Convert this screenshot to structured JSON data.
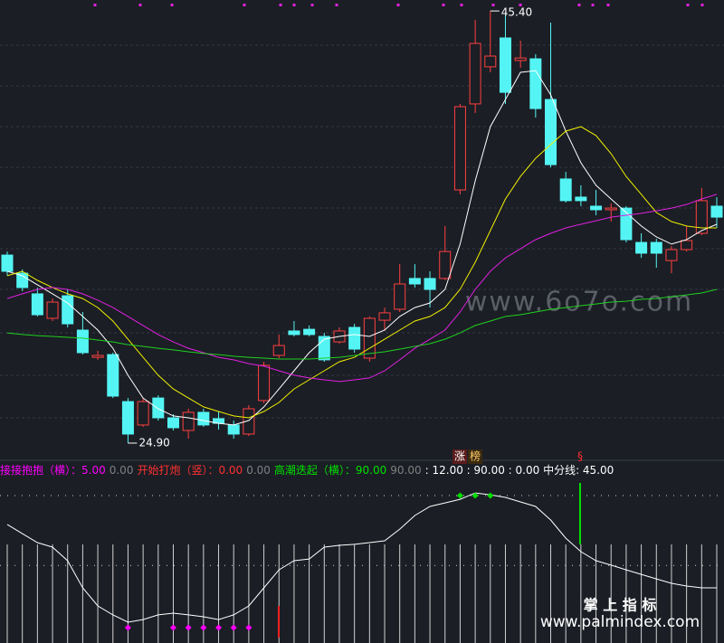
{
  "chart_data": {
    "type": "candlestick",
    "ylim": [
      24.47,
      45.92
    ],
    "up_color": "#ff4040",
    "down_color": "#54f4f4",
    "open": [
      33.82,
      32.96,
      31.98,
      30.82,
      31.89,
      30.26,
      28.97,
      29.1,
      26.87,
      25.76,
      27.04,
      26.1,
      25.5,
      26.36,
      26.06,
      25.76,
      25.33,
      26.92,
      29.06,
      30.22,
      30.3,
      29.96,
      29.7,
      30.39,
      28.93,
      30.73,
      31.25,
      32.71,
      32.71,
      32.71,
      36.91,
      40.99,
      42.75,
      44.12,
      43.05,
      43.13,
      41.2,
      37.43,
      36.57,
      36.14,
      35.97,
      36.05,
      34.42,
      34.42,
      33.56,
      34.08,
      34.85,
      36.14
    ],
    "high": [
      33.99,
      33.14,
      32.28,
      31.76,
      32.19,
      31.12,
      29.28,
      29.19,
      27.04,
      27.04,
      27.17,
      26.27,
      26.53,
      26.53,
      26.4,
      25.97,
      26.7,
      28.76,
      30.05,
      30.69,
      30.48,
      30.13,
      30.39,
      30.56,
      30.91,
      31.33,
      33.39,
      33.39,
      33.05,
      35.2,
      40.99,
      44.98,
      45.4,
      45.2,
      43.99,
      43.35,
      44.85,
      37.77,
      37.13,
      36.91,
      36.27,
      36.14,
      34.85,
      34.59,
      34.25,
      35.2,
      37.0,
      36.57
    ],
    "low": [
      32.84,
      32.11,
      30.91,
      30.69,
      30.39,
      29.1,
      28.85,
      27.04,
      24.9,
      25.67,
      25.97,
      25.5,
      25.11,
      25.67,
      25.54,
      25.11,
      25.24,
      26.79,
      28.93,
      29.96,
      29.96,
      28.76,
      29.62,
      29.19,
      28.76,
      30.22,
      31.12,
      32.28,
      31.33,
      32.62,
      36.7,
      40.56,
      42.49,
      40.99,
      42.7,
      40.34,
      37.98,
      36.31,
      36.14,
      35.71,
      35.41,
      34.42,
      33.69,
      33.22,
      32.96,
      33.99,
      34.77,
      35.11
    ],
    "close": [
      33.05,
      32.28,
      30.99,
      31.59,
      30.56,
      29.19,
      29.06,
      27.13,
      25.33,
      26.87,
      26.1,
      25.63,
      26.36,
      25.76,
      25.84,
      25.33,
      26.53,
      28.59,
      29.53,
      30.05,
      30.05,
      28.85,
      30.22,
      29.36,
      30.82,
      31.08,
      32.45,
      32.45,
      32.19,
      33.99,
      40.86,
      43.86,
      43.26,
      41.54,
      43.17,
      40.77,
      38.11,
      36.4,
      36.4,
      35.97,
      36.05,
      34.55,
      33.91,
      33.91,
      34.08,
      34.51,
      36.4,
      35.62
    ],
    "moving_averages": [
      {
        "color": "#ffffff",
        "values": [
          33.05,
          32.84,
          32.41,
          31.98,
          31.55,
          30.91,
          30.26,
          29.4,
          28.12,
          27.04,
          26.53,
          26.19,
          26.1,
          25.97,
          25.84,
          25.76,
          25.97,
          26.62,
          27.47,
          28.33,
          29.19,
          29.83,
          29.96,
          30.05,
          29.96,
          30.26,
          30.91,
          31.33,
          31.55,
          32.19,
          34.34,
          37.34,
          39.91,
          41.2,
          42.49,
          42.57,
          41.42,
          39.7,
          38.2,
          37.13,
          36.48,
          35.84,
          35.2,
          34.68,
          34.34,
          34.55,
          34.98,
          35.28
        ]
      },
      {
        "color": "#f0f000",
        "values": [
          32.84,
          33.05,
          32.62,
          32.28,
          31.98,
          31.76,
          31.33,
          30.69,
          29.83,
          28.97,
          28.12,
          27.47,
          27.04,
          26.62,
          26.4,
          26.19,
          26.1,
          26.4,
          26.83,
          27.47,
          27.9,
          28.33,
          28.76,
          28.97,
          29.4,
          29.83,
          30.26,
          30.69,
          30.91,
          31.33,
          32.19,
          33.48,
          34.98,
          36.48,
          37.55,
          38.41,
          39.06,
          39.7,
          39.91,
          39.49,
          38.63,
          37.55,
          36.7,
          35.84,
          35.41,
          35.2,
          35.11,
          35.11
        ]
      },
      {
        "color": "#e020e0",
        "values": [
          31.76,
          31.98,
          32.19,
          32.28,
          32.19,
          31.98,
          31.68,
          31.33,
          30.91,
          30.48,
          30.05,
          29.7,
          29.4,
          29.19,
          28.97,
          28.85,
          28.67,
          28.55,
          28.33,
          28.12,
          27.99,
          27.9,
          27.82,
          27.9,
          27.99,
          28.33,
          28.85,
          29.4,
          29.83,
          30.26,
          31.12,
          32.19,
          33.05,
          33.69,
          34.12,
          34.55,
          34.85,
          35.11,
          35.28,
          35.45,
          35.62,
          35.71,
          35.8,
          35.92,
          36.05,
          36.22,
          36.48,
          36.7
        ]
      },
      {
        "color": "#20d020",
        "values": [
          30.13,
          30.05,
          30.0,
          29.96,
          29.92,
          29.88,
          29.79,
          29.7,
          29.57,
          29.49,
          29.4,
          29.32,
          29.23,
          29.15,
          29.1,
          29.02,
          28.97,
          28.93,
          28.89,
          28.89,
          28.89,
          28.93,
          28.97,
          29.06,
          29.15,
          29.23,
          29.36,
          29.49,
          29.62,
          29.83,
          30.13,
          30.48,
          30.69,
          30.91,
          30.99,
          31.12,
          31.25,
          31.33,
          31.42,
          31.5,
          31.59,
          31.63,
          31.72,
          31.76,
          31.85,
          31.93,
          32.02,
          32.19
        ]
      }
    ],
    "annotations": [
      {
        "value": 45.4,
        "label": "45.40"
      },
      {
        "value": 24.9,
        "label": "24.90"
      }
    ],
    "top_labels": [
      "涨",
      "榜",
      "§"
    ]
  },
  "indicator": {
    "type": "line",
    "ylim": [
      0,
      100
    ],
    "legend": [
      {
        "text": "接接抱抱（横）：5.00",
        "color": "#ff00ff"
      },
      {
        "text": "0.00",
        "color": "#808080"
      },
      {
        "text": "开始打炮（竖）：0.00",
        "color": "#ff3030"
      },
      {
        "text": "0.00",
        "color": "#808080"
      },
      {
        "text": "高潮迭起（横）：90.00",
        "color": "#00e000"
      },
      {
        "text": "90.00",
        "color": "#808080"
      },
      {
        "text": ": 12.00 : 90.00 : 0.00  中分线: 45.00",
        "color": "#ffffff"
      }
    ],
    "references": [
      90,
      45
    ],
    "line": {
      "color": "#ffffff",
      "values": [
        71.4,
        65.5,
        59.7,
        56.8,
        48.1,
        30.6,
        19.0,
        13.2,
        8.5,
        10.2,
        13.2,
        14.3,
        13.2,
        12.0,
        10.2,
        13.2,
        19.0,
        30.6,
        42.2,
        48.1,
        49.2,
        56.8,
        58.0,
        58.6,
        59.7,
        60.9,
        68.4,
        77.2,
        83.0,
        85.3,
        87.6,
        91.7,
        90.5,
        88.8,
        85.9,
        83.0,
        74.3,
        62.6,
        53.9,
        48.1,
        45.2,
        42.2,
        39.3,
        36.4,
        33.5,
        31.8,
        30.6,
        30.6
      ]
    },
    "dots": [
      {
        "color": "#ff00ff",
        "values": [
          null,
          null,
          null,
          null,
          null,
          null,
          null,
          null,
          5,
          null,
          null,
          5,
          5,
          5,
          5,
          5,
          5,
          null,
          null,
          null,
          null,
          null,
          null,
          null,
          null,
          null,
          null,
          null,
          null,
          null,
          null,
          null,
          null,
          null,
          null,
          null,
          null,
          null,
          null,
          null,
          null,
          null,
          null,
          null,
          null,
          null,
          null,
          null
        ]
      },
      {
        "color": "#00e000",
        "values": [
          null,
          null,
          null,
          null,
          null,
          null,
          null,
          null,
          null,
          null,
          null,
          null,
          null,
          null,
          null,
          null,
          null,
          null,
          null,
          null,
          null,
          null,
          null,
          null,
          null,
          null,
          null,
          null,
          null,
          null,
          90,
          90,
          90,
          null,
          null,
          null,
          null,
          null,
          null,
          null,
          null,
          null,
          null,
          null,
          null,
          null,
          null,
          null
        ]
      }
    ]
  },
  "watermarks": {
    "site": "www.6o7o.com",
    "brand": "掌 上 指 标",
    "url": "www.palmindex.com"
  }
}
